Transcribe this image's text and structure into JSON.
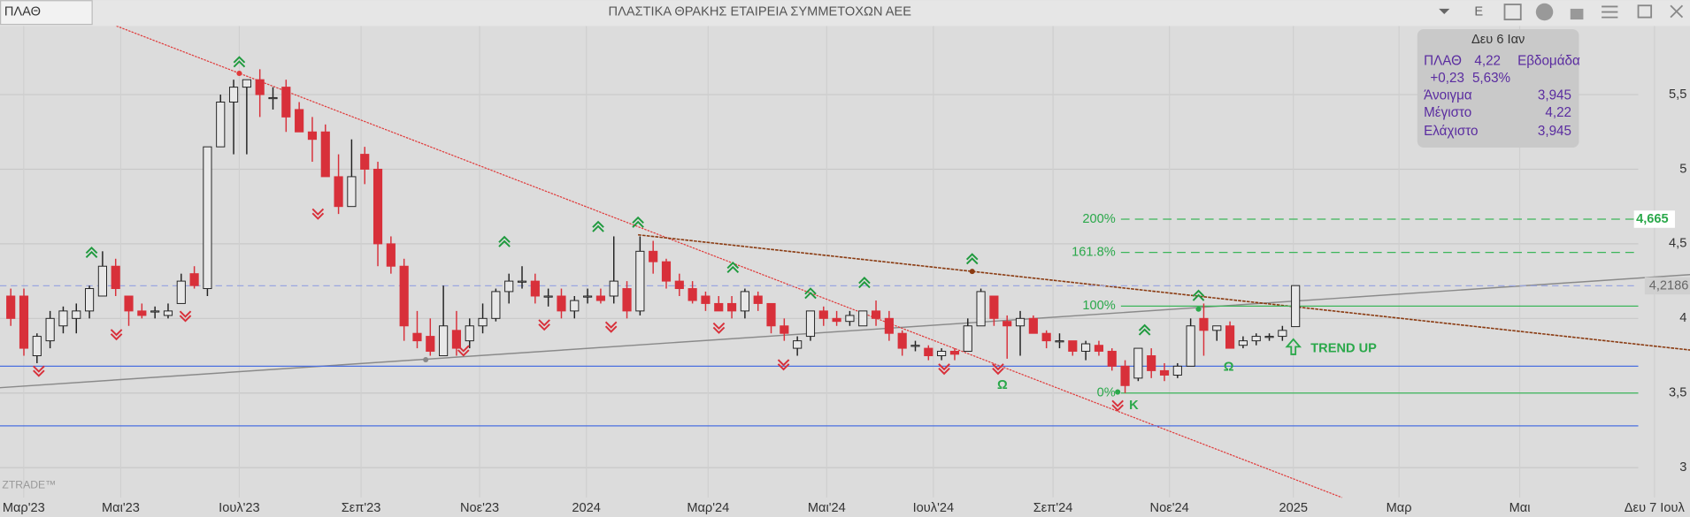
{
  "toolbar": {
    "symbol": "ΠΛΑΘ",
    "title": "ΠΛΑΣΤΙΚΑ ΘΡΑΚΗΣ ΕΤΑΙΡΕΙΑ ΣΥΜΜΕΤΟΧΩΝ ΑΕΕ",
    "button": "E"
  },
  "info_panel": {
    "date": "Δευ 6 Ιαν",
    "symbol": "ΠΛΑΘ",
    "price": "4,22",
    "period": "Εβδομάδα",
    "change": "+0,23",
    "change_pct": "5,63%",
    "rows": [
      {
        "label": "Άνοιγμα",
        "value": "3,945"
      },
      {
        "label": "Μέγιστο",
        "value": "4,22"
      },
      {
        "label": "Ελάχιστο",
        "value": "3,945"
      }
    ]
  },
  "watermark": "ZTRADE™",
  "chart_data": {
    "type": "candlestick",
    "ylim": [
      2.8,
      5.96
    ],
    "yticks": [
      {
        "value": 3,
        "label": "3"
      },
      {
        "value": 3.5,
        "label": "3,5"
      },
      {
        "value": 4,
        "label": "4"
      },
      {
        "value": 4.5,
        "label": "4,5"
      },
      {
        "value": 5,
        "label": "5"
      },
      {
        "value": 5.5,
        "label": "5,5"
      }
    ],
    "grid": true,
    "up_color": "#e8e8e8",
    "down_color": "#d8303a",
    "x_labels": [
      "Μαρ'23",
      "Μαι'23",
      "Ιουλ'23",
      "Σεπ'23",
      "Νοε'23",
      "2024",
      "Μαρ'24",
      "Μαι'24",
      "Ιουλ'24",
      "Σεπ'24",
      "Νοε'24",
      "2025",
      "Μαρ",
      "Μαι",
      "Δευ 7 Ιουλ"
    ],
    "open": [
      4.15,
      4.15,
      3.75,
      3.85,
      3.95,
      4.0,
      4.05,
      4.15,
      4.35,
      4.15,
      4.05,
      4.05,
      4.02,
      4.1,
      4.3,
      4.2,
      5.15,
      5.45,
      5.55,
      5.6,
      5.48,
      5.55,
      5.4,
      5.25,
      5.25,
      4.95,
      4.75,
      5.1,
      5.0,
      4.5,
      4.35,
      3.9,
      3.88,
      3.75,
      3.92,
      3.85,
      3.95,
      4.0,
      4.18,
      4.25,
      4.25,
      4.15,
      4.15,
      4.05,
      4.15,
      4.15,
      4.15,
      4.2,
      4.05,
      4.45,
      4.38,
      4.25,
      4.2,
      4.15,
      4.1,
      4.1,
      4.05,
      4.15,
      4.1,
      3.95,
      3.8,
      3.88,
      4.05,
      4.0,
      3.98,
      3.95,
      4.05,
      4.0,
      3.9,
      3.82,
      3.8,
      3.75,
      3.78,
      3.78,
      3.95,
      4.15,
      3.98,
      3.95,
      4.0,
      3.9,
      3.85,
      3.85,
      3.78,
      3.82,
      3.78,
      3.68,
      3.6,
      3.75,
      3.65,
      3.62,
      3.68,
      4.0,
      3.92,
      3.95,
      3.82,
      3.85,
      3.88,
      3.88,
      3.945
    ],
    "high": [
      4.2,
      4.2,
      3.9,
      4.05,
      4.08,
      4.1,
      4.22,
      4.45,
      4.4,
      4.15,
      4.1,
      4.08,
      4.1,
      4.3,
      4.35,
      5.15,
      5.5,
      5.6,
      5.6,
      5.67,
      5.55,
      5.6,
      5.45,
      5.35,
      5.3,
      5.1,
      5.2,
      5.15,
      5.05,
      4.55,
      4.4,
      4.05,
      4.0,
      4.22,
      4.05,
      4.0,
      4.1,
      4.2,
      4.3,
      4.35,
      4.3,
      4.2,
      4.2,
      4.15,
      4.2,
      4.2,
      4.55,
      4.25,
      4.55,
      4.52,
      4.4,
      4.3,
      4.25,
      4.18,
      4.15,
      4.15,
      4.2,
      4.18,
      4.1,
      4.0,
      3.88,
      4.05,
      4.08,
      4.05,
      4.05,
      4.05,
      4.12,
      4.05,
      3.92,
      3.85,
      3.82,
      3.8,
      3.8,
      4.0,
      4.2,
      4.15,
      4.02,
      4.05,
      4.02,
      3.92,
      3.9,
      3.85,
      3.85,
      3.85,
      3.8,
      3.72,
      3.8,
      3.8,
      3.7,
      3.7,
      4.0,
      4.1,
      3.95,
      3.98,
      3.88,
      3.9,
      3.9,
      3.95,
      4.22
    ],
    "low": [
      3.95,
      3.75,
      3.7,
      3.8,
      3.9,
      3.9,
      4.0,
      4.15,
      4.15,
      3.95,
      4.0,
      4.0,
      4.0,
      4.1,
      4.2,
      4.15,
      5.15,
      5.1,
      5.1,
      5.35,
      5.4,
      5.25,
      5.25,
      5.05,
      4.95,
      4.7,
      4.75,
      4.9,
      4.35,
      4.3,
      3.85,
      3.8,
      3.75,
      3.75,
      3.75,
      3.8,
      3.9,
      3.98,
      4.1,
      4.2,
      4.1,
      4.08,
      4.0,
      4.0,
      4.1,
      4.1,
      4.1,
      4.0,
      4.02,
      4.3,
      4.2,
      4.15,
      4.1,
      4.05,
      4.05,
      4.0,
      4.0,
      4.05,
      3.9,
      3.85,
      3.75,
      3.85,
      3.95,
      3.95,
      3.95,
      3.95,
      3.95,
      3.85,
      3.75,
      3.78,
      3.72,
      3.72,
      3.72,
      3.78,
      3.95,
      3.95,
      3.73,
      3.75,
      3.9,
      3.8,
      3.8,
      3.75,
      3.72,
      3.75,
      3.65,
      3.5,
      3.58,
      3.6,
      3.58,
      3.6,
      3.68,
      3.75,
      3.85,
      3.8,
      3.8,
      3.82,
      3.85,
      3.85,
      3.945
    ],
    "close": [
      4.0,
      3.8,
      3.88,
      4.0,
      4.05,
      4.05,
      4.2,
      4.35,
      4.2,
      4.05,
      4.02,
      4.05,
      4.05,
      4.25,
      4.22,
      5.15,
      5.45,
      5.55,
      5.6,
      5.5,
      5.48,
      5.35,
      5.25,
      5.2,
      4.95,
      4.75,
      4.95,
      5.0,
      4.5,
      4.35,
      3.95,
      3.85,
      3.78,
      3.95,
      3.8,
      3.95,
      4.0,
      4.18,
      4.25,
      4.25,
      4.15,
      4.15,
      4.05,
      4.12,
      4.15,
      4.12,
      4.25,
      4.05,
      4.45,
      4.38,
      4.25,
      4.2,
      4.12,
      4.1,
      4.05,
      4.05,
      4.18,
      4.1,
      3.95,
      3.9,
      3.85,
      4.05,
      4.0,
      3.98,
      4.02,
      4.05,
      4.0,
      3.9,
      3.8,
      3.82,
      3.75,
      3.78,
      3.76,
      3.95,
      4.18,
      4.0,
      3.95,
      4.0,
      3.9,
      3.85,
      3.85,
      3.78,
      3.83,
      3.78,
      3.68,
      3.55,
      3.8,
      3.65,
      3.62,
      3.68,
      3.95,
      3.92,
      3.95,
      3.8,
      3.85,
      3.88,
      3.88,
      3.92,
      4.22
    ],
    "fib_levels": [
      {
        "label": "200%",
        "value": 4.665
      },
      {
        "label": "161.8%",
        "value": 4.4425
      },
      {
        "label": "100%",
        "value": 4.0825
      },
      {
        "label": "0%",
        "value": 3.5
      }
    ],
    "support_levels": [
      3.68,
      3.28
    ],
    "last_price": {
      "value": 4.2186,
      "label": "4,2186"
    },
    "target": {
      "value": 4.665,
      "label": "4,665"
    },
    "annotations": [
      "TREND UP",
      "Ω",
      "Ω",
      "K"
    ]
  }
}
